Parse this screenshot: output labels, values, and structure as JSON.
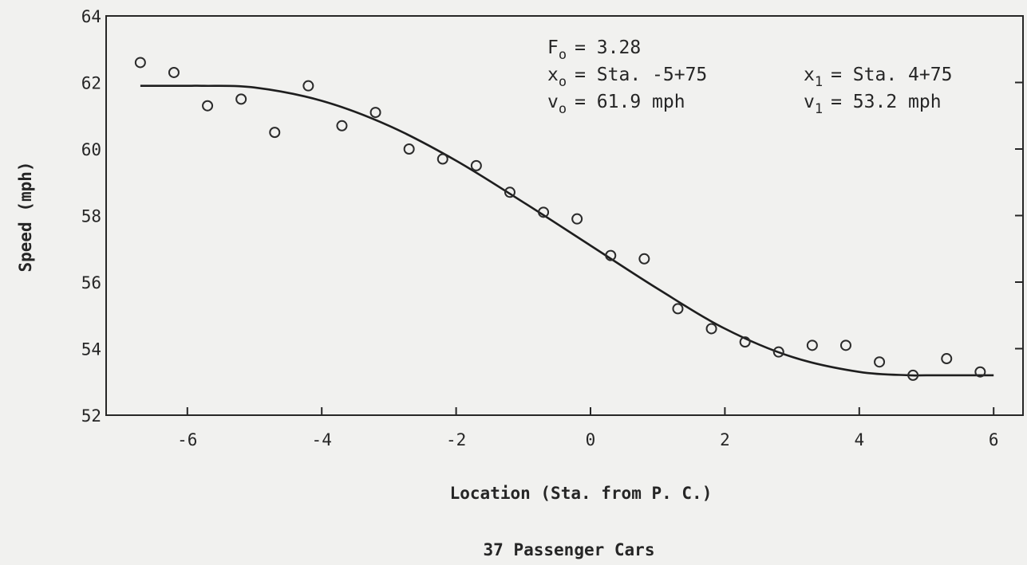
{
  "chart_data": {
    "type": "scatter",
    "title": "",
    "xlabel": "Location (Sta. from P. C.)",
    "ylabel": "Speed (mph)",
    "caption": "37 Passenger Cars",
    "xlim": [
      -7.2,
      6.4
    ],
    "ylim": [
      52,
      64
    ],
    "xticks": [
      -6,
      -4,
      -2,
      0,
      2,
      4,
      6
    ],
    "xtick_labels": [
      "-6",
      "-4",
      "-2",
      "0",
      "2",
      "4",
      "6"
    ],
    "yticks": [
      52,
      54,
      56,
      58,
      60,
      62,
      64
    ],
    "ytick_labels": [
      "52",
      "54",
      "56",
      "58",
      "60",
      "62",
      "64"
    ],
    "grid": false,
    "series": [
      {
        "kind": "points",
        "marker": "open-circle",
        "x": [
          -6.7,
          -6.2,
          -5.7,
          -5.2,
          -4.7,
          -4.2,
          -3.7,
          -3.2,
          -2.7,
          -2.2,
          -1.7,
          -1.2,
          -0.7,
          -0.2,
          0.3,
          0.8,
          1.3,
          1.8,
          2.3,
          2.8,
          3.3,
          3.8,
          4.3,
          4.8,
          5.3,
          5.8
        ],
        "y": [
          62.6,
          62.3,
          61.3,
          61.5,
          60.5,
          61.9,
          60.7,
          61.1,
          60.0,
          59.7,
          59.5,
          58.7,
          58.1,
          57.9,
          56.8,
          56.7,
          55.2,
          54.6,
          54.2,
          53.9,
          54.1,
          54.1,
          53.6,
          53.2,
          53.7,
          53.3
        ]
      },
      {
        "kind": "fitted-curve",
        "x": [
          -6.7,
          -6.0,
          -5.75,
          -5.0,
          -4.0,
          -3.0,
          -2.0,
          -1.0,
          0.0,
          1.0,
          2.0,
          3.0,
          4.0,
          4.75,
          5.0,
          6.0
        ],
        "y": [
          61.9,
          61.9,
          61.9,
          61.85,
          61.45,
          60.7,
          59.65,
          58.4,
          57.1,
          55.8,
          54.6,
          53.75,
          53.3,
          53.2,
          53.2,
          53.2
        ]
      }
    ],
    "annotations": {
      "f0_var": "F",
      "f0_sub": "o",
      "f0_value": "= 3.28",
      "x0_var": "x",
      "x0_sub": "o",
      "x0_value": "= Sta. -5+75",
      "v0_var": "v",
      "v0_sub": "o",
      "v0_value": "= 61.9 mph",
      "x1_var": "x",
      "x1_sub": "1",
      "x1_value": "= Sta. 4+75",
      "v1_var": "v",
      "v1_sub": "1",
      "v1_value": "= 53.2 mph"
    }
  }
}
